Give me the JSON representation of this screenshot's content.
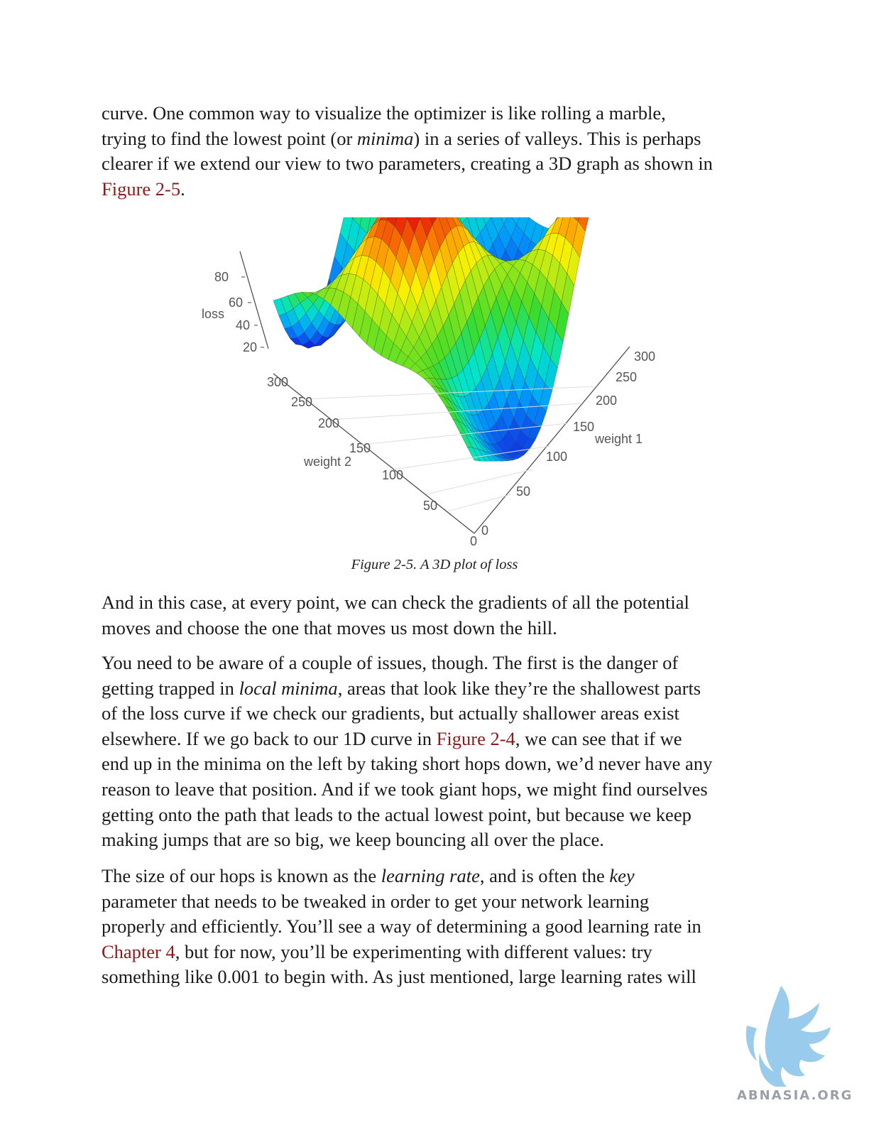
{
  "para1": {
    "l1": "curve. One common way to visualize the optimizer is like rolling a marble,",
    "l2_a": "trying to find the lowest point (or ",
    "l2_em": "minima",
    "l2_b": ") in a series of valleys. This is perhaps",
    "l3": "clearer if we extend our view to two parameters, creating a 3D graph as shown in",
    "l4_link": "Figure 2-5",
    "l4_b": "."
  },
  "figure": {
    "caption": "Figure 2-5. A 3D plot of loss",
    "z_axis_label": "loss",
    "z_ticks": [
      "80",
      "60",
      "40",
      "20"
    ],
    "y_axis_label": "weight 2",
    "y_ticks": [
      "300",
      "250",
      "200",
      "150",
      "100",
      "50",
      "0"
    ],
    "x_axis_label": "weight 1",
    "x_ticks": [
      "300",
      "250",
      "200",
      "150",
      "100",
      "50",
      "0"
    ]
  },
  "para2": {
    "l1": "And in this case, at every point, we can check the gradients of all the potential",
    "l2": "moves and choose the one that moves us most down the hill."
  },
  "para3": {
    "l1": "You need to be aware of a couple of issues, though. The first is the danger of",
    "l2_a": "getting trapped in ",
    "l2_em": "local minima",
    "l2_b": ", areas that look like they’re the shallowest parts",
    "l3": "of the loss curve if we check our gradients, but actually shallower areas exist",
    "l4_a": "elsewhere. If we go back to our 1D curve in ",
    "l4_link": "Figure 2-4",
    "l4_b": ", we can see that if we",
    "l5": "end up in the minima on the left by taking short hops down, we’d never have any",
    "l6": "reason to leave that position. And if we took giant hops, we might find ourselves",
    "l7": "getting onto the path that leads to the actual lowest point, but because we keep",
    "l8": "making jumps that are so big, we keep bouncing all over the place."
  },
  "para4": {
    "l1_a": "The size of our hops is known as the ",
    "l1_em": "learning rate",
    "l1_b": ", and is often the ",
    "l1_em2": "key",
    "l2": "parameter that needs to be tweaked in order to get your network learning",
    "l3": "properly and efficiently. You’ll see a way of determining a good learning rate in",
    "l4_link": "Chapter 4",
    "l4_b": ", but for now, you’ll be experimenting with different values: try",
    "l5": "something like 0.001 to begin with. As just mentioned, large learning rates will"
  },
  "watermark": {
    "text": "ABNASIA.ORG",
    "icon": "griffin-logo"
  }
}
